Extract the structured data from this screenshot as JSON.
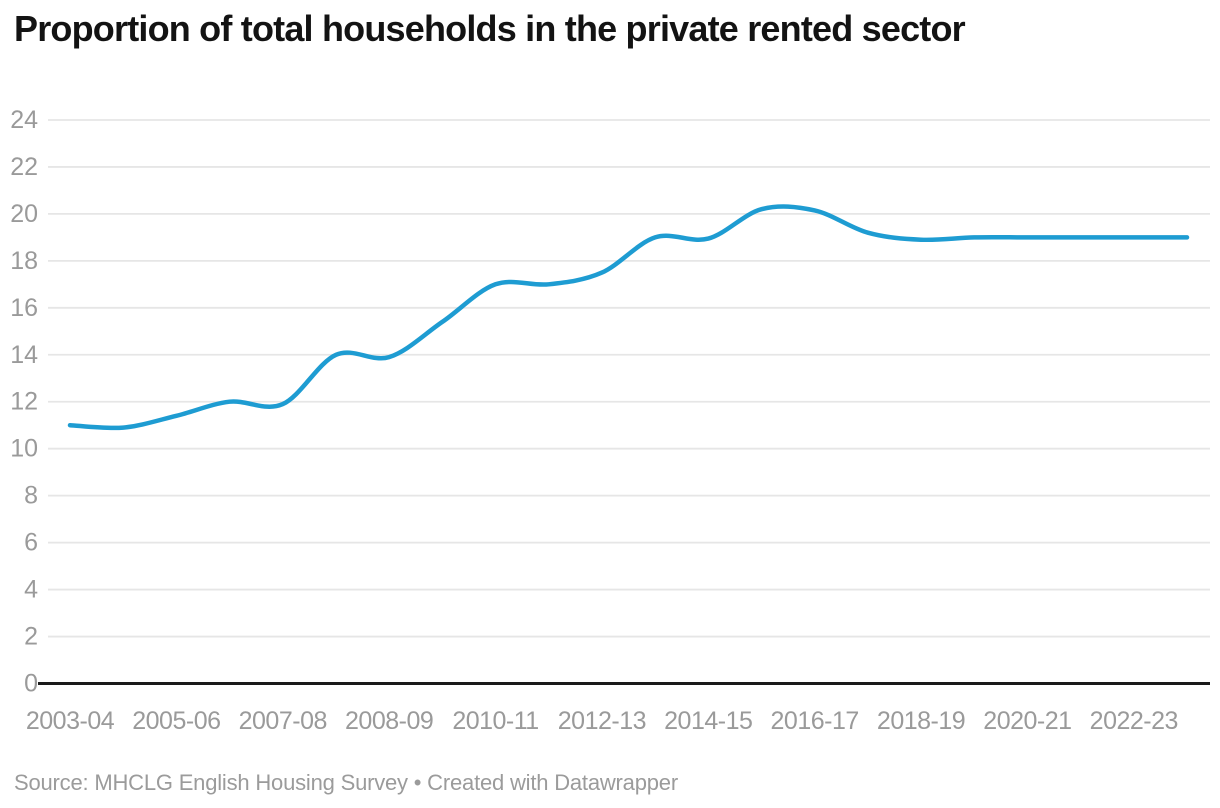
{
  "chart_data": {
    "type": "line",
    "title": "Proportion of total households in the private rented sector",
    "x_tick_labels": [
      "2003-04",
      "2005-06",
      "2007-08",
      "2008-09",
      "2010-11",
      "2012-13",
      "2014-15",
      "2016-17",
      "2018-19",
      "2020-21",
      "2022-23"
    ],
    "x_tick_every_n_points": 2,
    "values": [
      11.0,
      10.9,
      11.4,
      12.0,
      11.9,
      14.0,
      13.9,
      15.4,
      17.0,
      17.0,
      17.5,
      19.0,
      18.95,
      20.2,
      20.15,
      19.2,
      18.9,
      19.0,
      19.0,
      19.0,
      19.0,
      19.0
    ],
    "ylim": [
      0,
      24
    ],
    "ytick_step": 2,
    "y_tick_labels": [
      "0",
      "2",
      "4",
      "6",
      "8",
      "10",
      "12",
      "14",
      "16",
      "18",
      "20",
      "22",
      "24"
    ],
    "grid": true,
    "legend_position": "none",
    "line_color": "#1e9cd2",
    "grid_color": "#e6e6e6",
    "zero_axis_color": "#1a1a1a",
    "tick_label_color": "#9a9a9a",
    "title_color": "#131313",
    "background_color": "#ffffff"
  },
  "footer": {
    "source_text": "Source: MHCLG English Housing Survey • Created with Datawrapper"
  }
}
